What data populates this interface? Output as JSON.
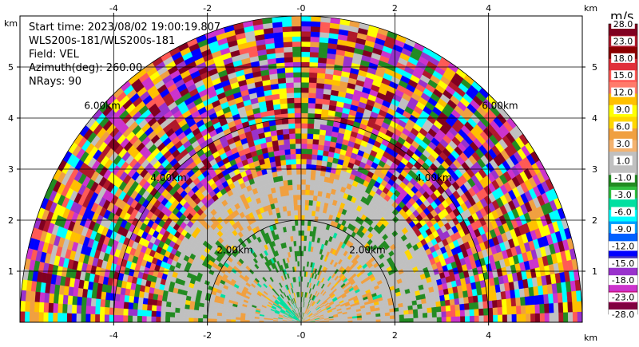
{
  "chart_data": {
    "type": "heatmap",
    "subtype": "radar-ppi-sector",
    "info_lines": [
      "Start time: 2023/08/02 19:00:19.807",
      "WLS200s-181/WLS200s-181",
      "Field: VEL",
      "Azimuth(deg): 260.00",
      "NRays: 90"
    ],
    "x_unit": "km",
    "y_unit": "km",
    "xlim": [
      -6,
      6
    ],
    "ylim": [
      0,
      6
    ],
    "x_ticks": [
      "-4",
      "-2",
      "-0",
      "2",
      "4"
    ],
    "x_tick_values": [
      -4,
      -2,
      0,
      2,
      4
    ],
    "y_ticks": [
      "1",
      "2",
      "3",
      "4",
      "5"
    ],
    "y_tick_values": [
      1,
      2,
      3,
      4,
      5
    ],
    "grid": true,
    "range_rings": [
      {
        "range_km": 2,
        "label": "2.00km"
      },
      {
        "range_km": 4,
        "label": "4.00km"
      },
      {
        "range_km": 6,
        "label": "6.00km"
      }
    ],
    "colorbar": {
      "title": "m/s",
      "colors": [
        "#800020",
        "#b0182a",
        "#8b0000",
        "#e0303a",
        "#ff5a55",
        "#ff7b6b",
        "#ffc000",
        "#ffff00",
        "#ffd700",
        "#f0a040",
        "#f4b370",
        "#c0c0c0",
        "#c0c0c0",
        "#228b22",
        "#30c040",
        "#00e0a0",
        "#00ffff",
        "#00a0ff",
        "#0060ff",
        "#0000ff",
        "#4030c0",
        "#9932cc",
        "#cc33cc",
        "#c71585",
        "#800040"
      ],
      "labels": [
        "28.0",
        "23.0",
        "18.0",
        "15.0",
        "12.0",
        "9.0",
        "6.0",
        "3.0",
        "1.0",
        "-1.0",
        "-3.0",
        "-6.0",
        "-9.0",
        "-12.0",
        "-15.0",
        "-18.0",
        "-23.0",
        "-28.0"
      ],
      "label_values": [
        28,
        23,
        18,
        15,
        12,
        9,
        6,
        3,
        1,
        -1,
        -3,
        -6,
        -9,
        -12,
        -15,
        -18,
        -23,
        -28
      ]
    },
    "zones": [
      {
        "r_max_km": 2.0,
        "dominant": "#c0c0c0",
        "secondary": [
          "#228b22",
          "#f0a040",
          "#ffc000",
          "#00e0a0"
        ]
      },
      {
        "r_max_km": 3.0,
        "dominant": "#c0c0c0",
        "secondary": [
          "#f0a040",
          "#228b22",
          "#ffc000",
          "#ffd700"
        ]
      },
      {
        "r_max_km": 6.0,
        "dominant": "mixed",
        "secondary": [
          "#800020",
          "#b0182a",
          "#ff5a55",
          "#ffc000",
          "#ffff00",
          "#00ffff",
          "#0000ff",
          "#9932cc",
          "#228b22",
          "#f0a040",
          "#c0c0c0",
          "#cc33cc"
        ]
      }
    ]
  }
}
